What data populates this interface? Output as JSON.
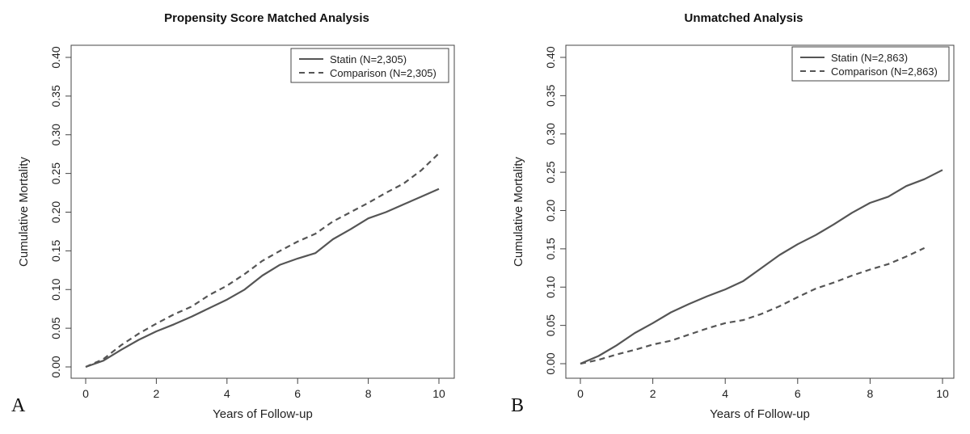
{
  "chart_data": [
    {
      "type": "line",
      "panel_letter": "A",
      "title": "Propensity Score Matched Analysis",
      "xlabel": "Years of Follow-up",
      "ylabel": "Cumulative Mortality",
      "xlim": [
        0,
        10
      ],
      "ylim": [
        0,
        0.4
      ],
      "xticks": [
        "0",
        "2",
        "4",
        "6",
        "8",
        "10"
      ],
      "yticks": [
        "0.00",
        "0.05",
        "0.10",
        "0.15",
        "0.20",
        "0.25",
        "0.30",
        "0.35",
        "0.40"
      ],
      "grid": false,
      "legend_position": "top-right",
      "series": [
        {
          "name": "Statin (N=2,305)",
          "style": "solid",
          "color": "#555555",
          "x": [
            0,
            0.5,
            1,
            1.5,
            2,
            2.5,
            3,
            3.5,
            4,
            4.5,
            5,
            5.5,
            6,
            6.5,
            7,
            7.5,
            8,
            8.5,
            9,
            9.5,
            10
          ],
          "y": [
            0,
            0.008,
            0.022,
            0.035,
            0.046,
            0.055,
            0.065,
            0.076,
            0.087,
            0.1,
            0.118,
            0.132,
            0.14,
            0.147,
            0.165,
            0.178,
            0.192,
            0.2,
            0.21,
            0.22,
            0.23
          ]
        },
        {
          "name": "Comparison (N=2,305)",
          "style": "dashed",
          "color": "#555555",
          "x": [
            0,
            0.5,
            1,
            1.5,
            2,
            2.5,
            3,
            3.5,
            4,
            4.5,
            5,
            5.5,
            6,
            6.5,
            7,
            7.5,
            8,
            8.5,
            9,
            9.5,
            10
          ],
          "y": [
            0,
            0.01,
            0.028,
            0.043,
            0.056,
            0.068,
            0.078,
            0.093,
            0.105,
            0.12,
            0.137,
            0.15,
            0.162,
            0.172,
            0.188,
            0.2,
            0.212,
            0.225,
            0.237,
            0.254,
            0.276
          ]
        }
      ]
    },
    {
      "type": "line",
      "panel_letter": "B",
      "title": "Unmatched Analysis",
      "xlabel": "Years of Follow-up",
      "ylabel": "Cumulative Mortality",
      "xlim": [
        0,
        10
      ],
      "ylim": [
        0,
        0.4
      ],
      "xticks": [
        "0",
        "2",
        "4",
        "6",
        "8",
        "10"
      ],
      "yticks": [
        "0.00",
        "0.05",
        "0.10",
        "0.15",
        "0.20",
        "0.25",
        "0.30",
        "0.35",
        "0.40"
      ],
      "grid": false,
      "legend_position": "top-right",
      "series": [
        {
          "name": "Statin (N=2,863)",
          "style": "solid",
          "color": "#555555",
          "x": [
            0,
            0.5,
            1,
            1.5,
            2,
            2.5,
            3,
            3.5,
            4,
            4.5,
            5,
            5.5,
            6,
            6.5,
            7,
            7.5,
            8,
            8.5,
            9,
            9.5,
            10
          ],
          "y": [
            0,
            0.01,
            0.024,
            0.04,
            0.053,
            0.067,
            0.078,
            0.088,
            0.097,
            0.108,
            0.125,
            0.142,
            0.156,
            0.168,
            0.182,
            0.197,
            0.21,
            0.218,
            0.232,
            0.241,
            0.253
          ]
        },
        {
          "name": "Comparison (N=2,863)",
          "style": "dashed",
          "color": "#555555",
          "x": [
            0,
            0.5,
            1,
            1.5,
            2,
            2.5,
            3,
            3.5,
            4,
            4.5,
            5,
            5.5,
            6,
            6.5,
            7,
            7.5,
            8,
            8.5,
            9,
            9.5
          ],
          "y": [
            0,
            0.005,
            0.012,
            0.018,
            0.025,
            0.03,
            0.038,
            0.046,
            0.053,
            0.057,
            0.065,
            0.075,
            0.087,
            0.098,
            0.106,
            0.115,
            0.123,
            0.13,
            0.14,
            0.151
          ]
        }
      ]
    }
  ]
}
